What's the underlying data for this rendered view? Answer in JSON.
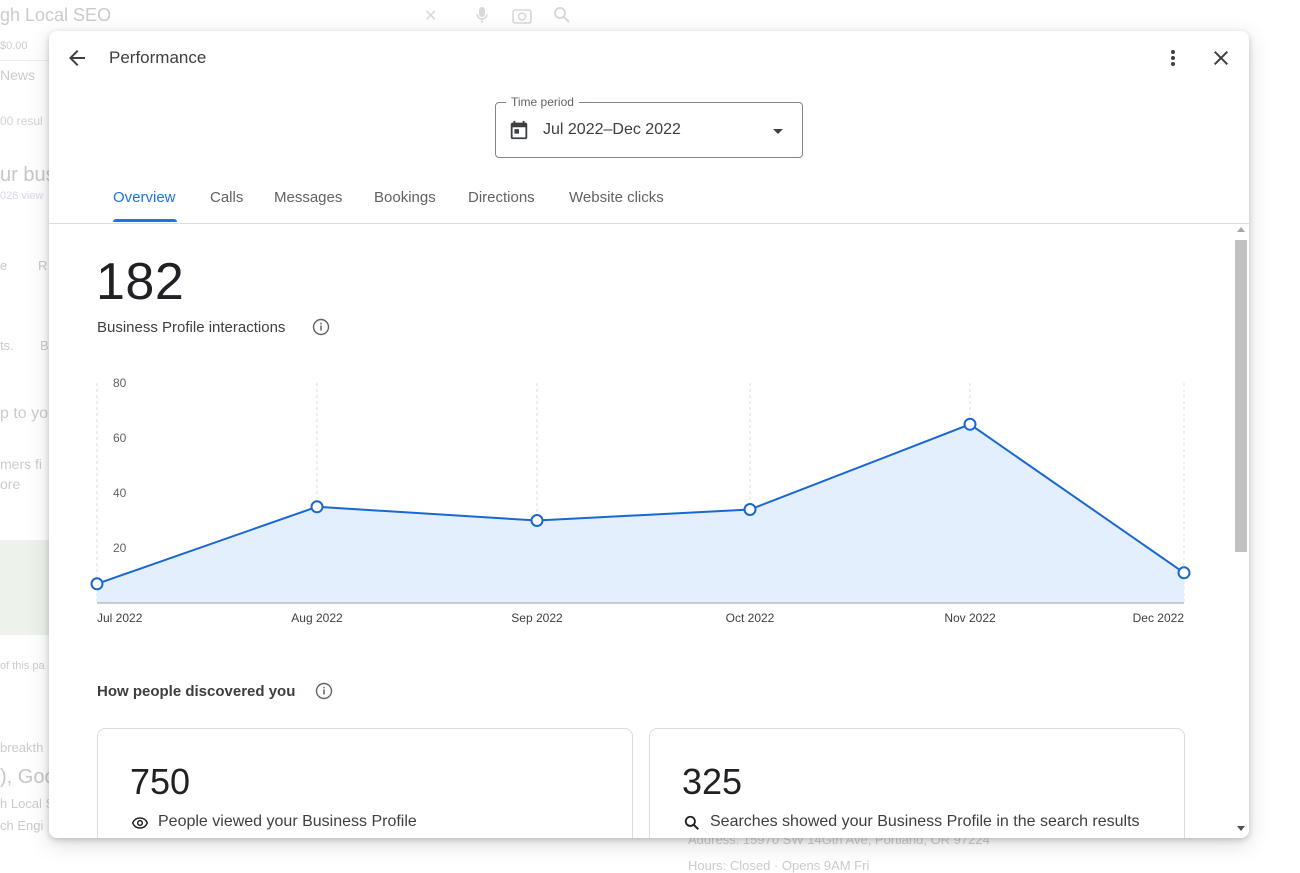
{
  "background": {
    "search_query": "gh Local SEO",
    "price": "$0.00",
    "news": "News",
    "results": "00 resul",
    "business": "ur bus",
    "views": "026 view",
    "tab_r": "R",
    "tab_e": "e",
    "ts": "ts.",
    "ts2": "B",
    "up": "p to yo",
    "customers": "mers fi",
    "more": "ore",
    "page": "of this pa",
    "break": "breakth",
    "goo": "), Goo",
    "local": "h Local S",
    "engine": "ch Engi",
    "address": "Address: 15970 SW 14Gth Ave, Portland, OR 97224",
    "hours": "Hours: Closed · Opens 9AM Fri"
  },
  "dialog": {
    "title": "Performance",
    "time_period": {
      "label": "Time period",
      "value": "Jul 2022–Dec 2022"
    },
    "tabs": [
      {
        "label": "Overview",
        "active": true
      },
      {
        "label": "Calls",
        "active": false
      },
      {
        "label": "Messages",
        "active": false
      },
      {
        "label": "Bookings",
        "active": false
      },
      {
        "label": "Directions",
        "active": false
      },
      {
        "label": "Website clicks",
        "active": false
      }
    ]
  },
  "overview": {
    "total": "182",
    "total_label": "Business Profile interactions",
    "discovery_title": "How people discovered you",
    "cards": [
      {
        "value": "750",
        "label": "People viewed your Business Profile",
        "icon": "eye-icon"
      },
      {
        "value": "325",
        "label": "Searches showed your Business Profile in the search results",
        "icon": "search-icon"
      }
    ]
  },
  "chart_data": {
    "type": "area",
    "categories": [
      "Jul 2022",
      "Aug 2022",
      "Sep 2022",
      "Oct 2022",
      "Nov 2022",
      "Dec 2022"
    ],
    "values": [
      7,
      35,
      30,
      34,
      65,
      11
    ],
    "yticks": [
      20,
      40,
      60,
      80
    ],
    "ylim": [
      0,
      80
    ],
    "grid": "vertical-dashed",
    "colors": {
      "line": "#1967d2",
      "fill": "#e3effd",
      "grid": "#dadce0",
      "axis": "#9aa0a6"
    }
  }
}
